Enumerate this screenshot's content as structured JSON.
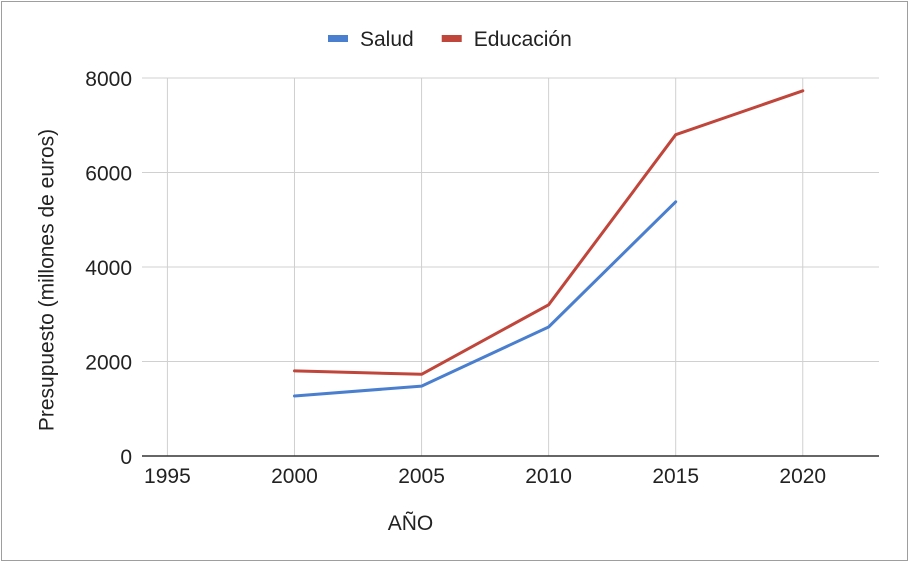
{
  "chart_data": {
    "type": "line",
    "title": "",
    "xlabel": "AÑO",
    "ylabel": "Presupuesto (millones de euros)",
    "x_ticks": [
      1995,
      2000,
      2005,
      2010,
      2015,
      2020
    ],
    "y_ticks": [
      0,
      2000,
      4000,
      6000,
      8000
    ],
    "xlim": [
      1994,
      2023
    ],
    "ylim": [
      0,
      8000
    ],
    "grid": true,
    "legend_position": "top-center",
    "series": [
      {
        "name": "Salud",
        "color": "#4a7fcf",
        "points": [
          {
            "x": 2000,
            "y": 1270
          },
          {
            "x": 2005,
            "y": 1480
          },
          {
            "x": 2010,
            "y": 2730
          },
          {
            "x": 2015,
            "y": 5380
          }
        ]
      },
      {
        "name": "Educación",
        "color": "#c0453a",
        "points": [
          {
            "x": 2000,
            "y": 1800
          },
          {
            "x": 2005,
            "y": 1730
          },
          {
            "x": 2010,
            "y": 3200
          },
          {
            "x": 2015,
            "y": 6800
          },
          {
            "x": 2020,
            "y": 7730
          }
        ]
      }
    ]
  }
}
